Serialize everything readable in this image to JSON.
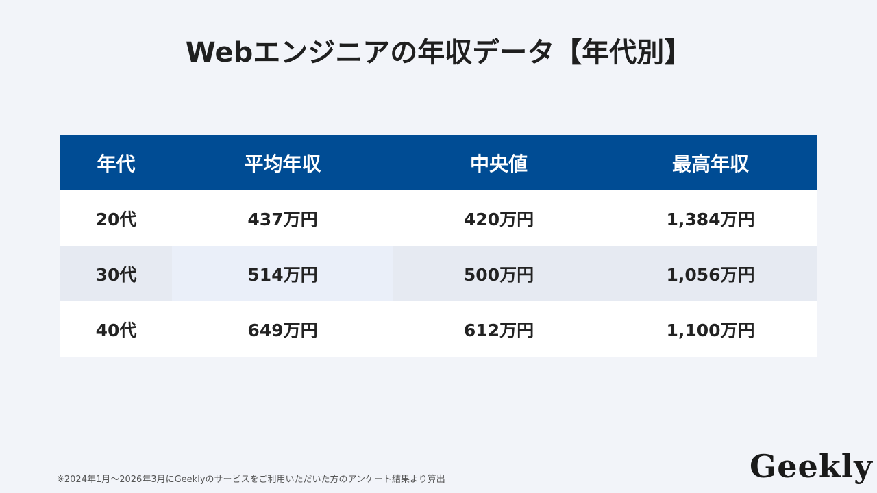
{
  "header": {
    "title": "Webエンジニアの年収データ【年代別】"
  },
  "table": {
    "columns": [
      "年代",
      "平均年収",
      "中央値",
      "最高年収"
    ],
    "rows": [
      [
        "20代",
        "437万円",
        "420万円",
        "1,384万円"
      ],
      [
        "30代",
        "514万円",
        "500万円",
        "1,056万円"
      ],
      [
        "40代",
        "649万円",
        "612万円",
        "1,100万円"
      ]
    ]
  },
  "footer": {
    "note": "※2024年1月～2026年3月にGeeklyのサービスをご利用いただいた方のアンケート結果より算出",
    "logo": "Geekly"
  }
}
